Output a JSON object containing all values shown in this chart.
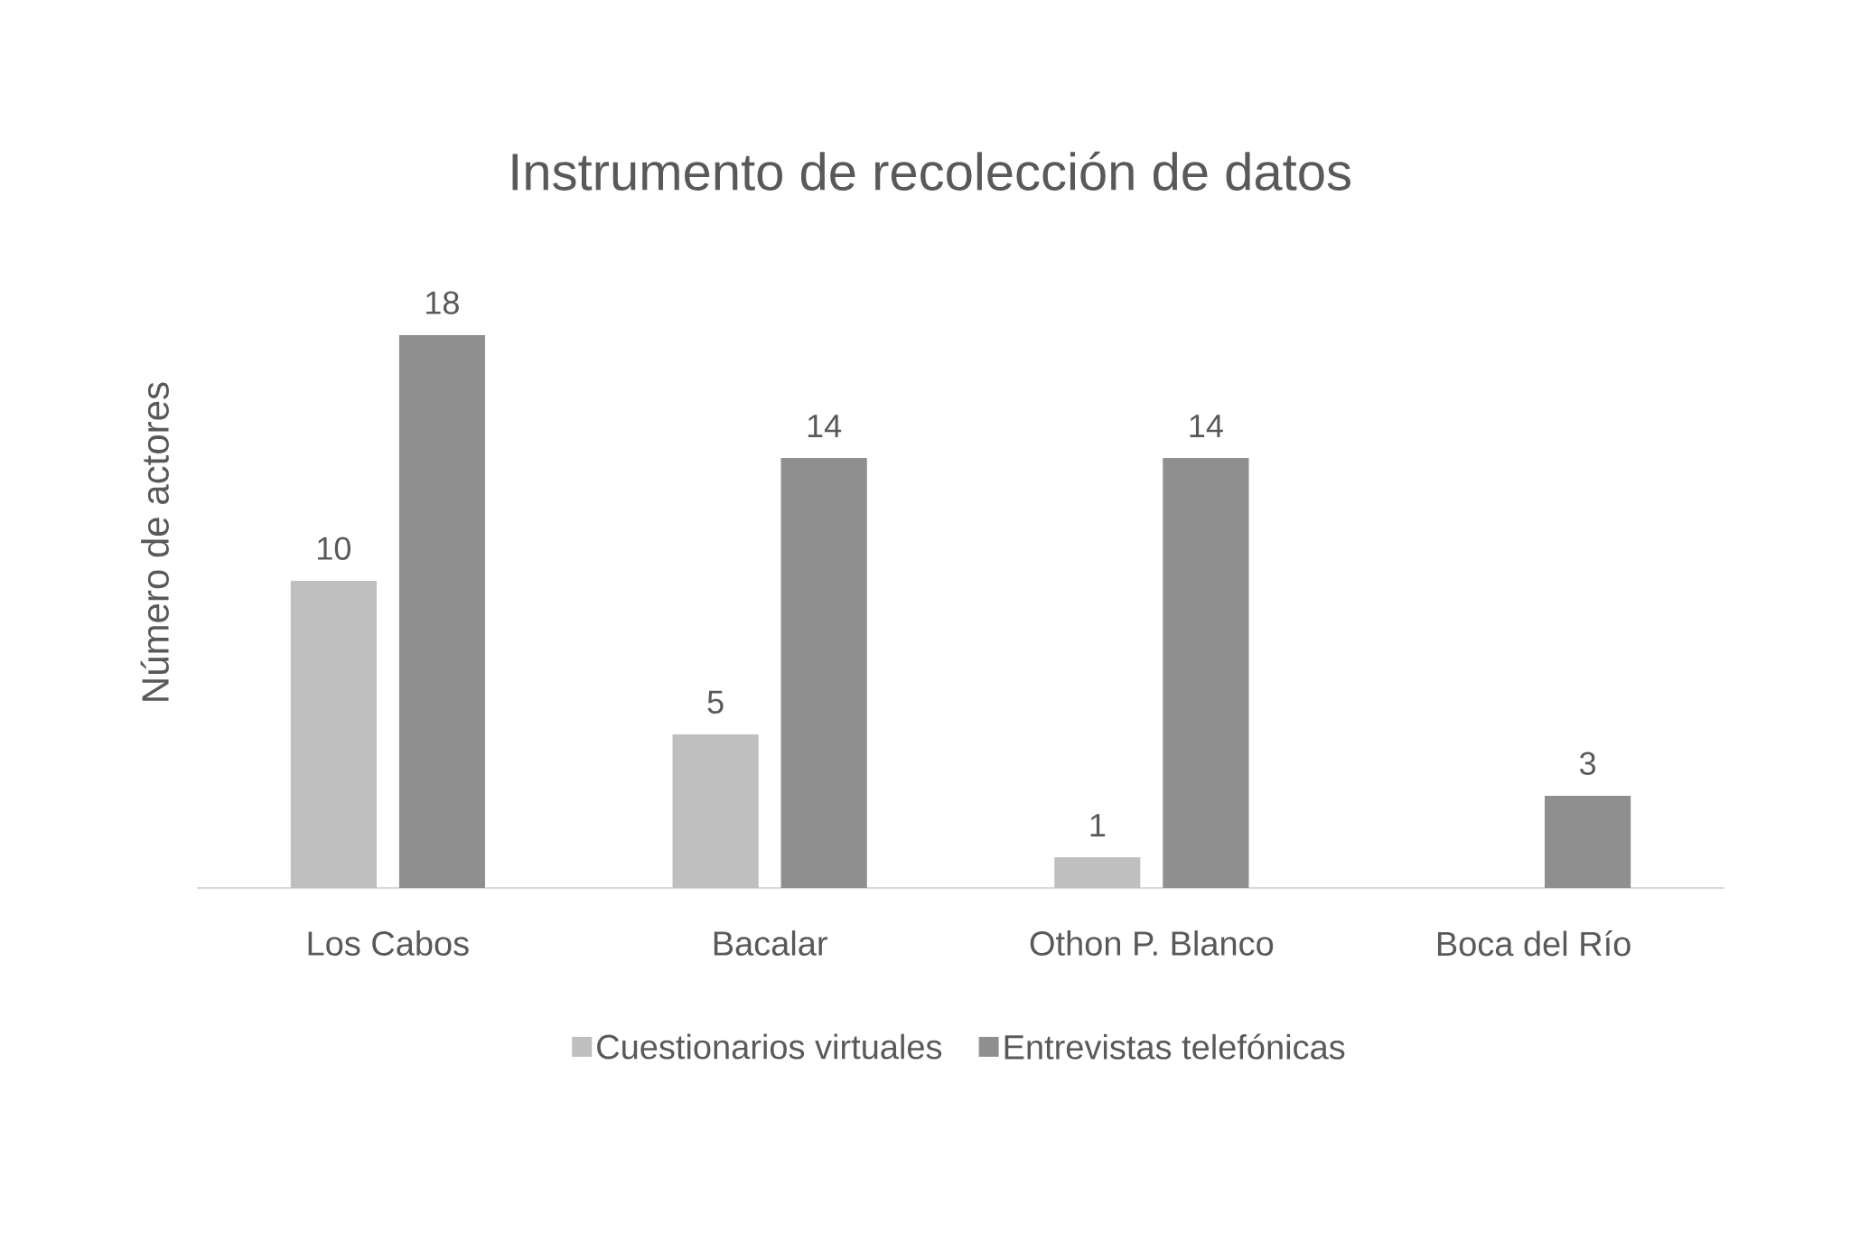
{
  "chart_data": {
    "type": "bar",
    "title": "Instrumento de recolección de datos",
    "ylabel": "Número de actores",
    "categories": [
      "Los Cabos",
      "Bacalar",
      "Othon P. Blanco",
      "Boca del Río"
    ],
    "series": [
      {
        "name": "Cuestionarios virtuales",
        "color": "#bfbfbf",
        "values": [
          10,
          5,
          1,
          null
        ]
      },
      {
        "name": "Entrevistas telefónicas",
        "color": "#8f8f8f",
        "values": [
          18,
          14,
          14,
          3
        ]
      }
    ],
    "data_labels": true,
    "legend": "bottom"
  }
}
